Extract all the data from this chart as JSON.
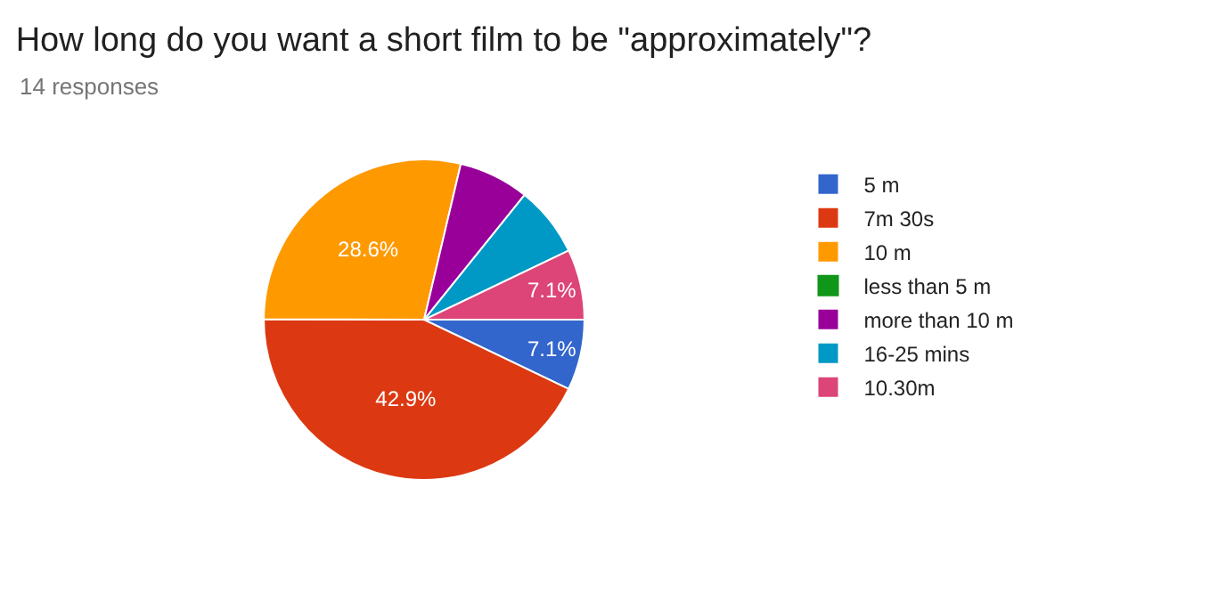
{
  "chart_data": {
    "type": "pie",
    "title": "How long do you want a short film to be \"approximately\"?",
    "subtitle": "14 responses",
    "categories": [
      "5 m",
      "7m 30s",
      "10 m",
      "less than 5 m",
      "more than 10 m",
      "16-25 mins",
      "10.30m"
    ],
    "values": [
      7.1,
      42.9,
      28.6,
      0,
      7.1,
      7.1,
      7.1
    ],
    "value_labels": [
      "7.1%",
      "42.9%",
      "28.6%",
      null,
      null,
      null,
      "7.1%"
    ],
    "colors": [
      "#3366cc",
      "#dc3912",
      "#ff9900",
      "#109618",
      "#990099",
      "#0099c6",
      "#dd4477"
    ],
    "legend": "right"
  }
}
